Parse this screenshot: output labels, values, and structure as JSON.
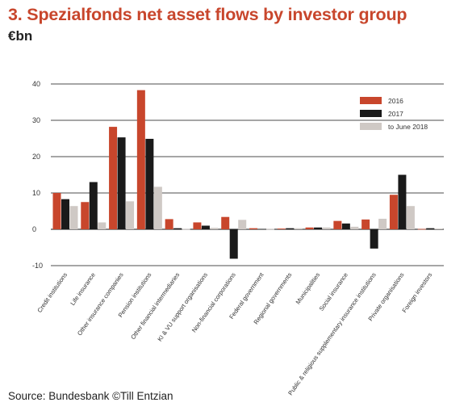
{
  "title": "3. Spezialfonds net asset flows by investor group",
  "unit": "€bn",
  "source": "Source: Bundesbank ©Till Entzian",
  "colors": {
    "s2016": "#c8462c",
    "s2017": "#1a1a1a",
    "s2018": "#cfc9c5",
    "grid": "#111111",
    "title": "#c8462c"
  },
  "chart_data": {
    "type": "bar",
    "title": "3. Spezialfonds net asset flows by investor group",
    "ylabel": "€bn",
    "xlabel": "",
    "ylim": [
      -10,
      40
    ],
    "yticks": [
      -10,
      0,
      10,
      20,
      30,
      40
    ],
    "grid": true,
    "legend_position": "top-right",
    "categories": [
      "Credit institutions",
      "Life insurance",
      "Other insurance companies",
      "Pension institutions",
      "Other financial intermediaries",
      "KI & VU support organisations",
      "Non-financial corporations",
      "Federal government",
      "Regional governments",
      "Municipalities",
      "Social insurance",
      "Public & religious supplementary insurance institutions",
      "Private organisations",
      "Foreign investors"
    ],
    "series": [
      {
        "name": "2016",
        "values": [
          10.0,
          7.5,
          28.2,
          38.3,
          2.8,
          1.9,
          3.4,
          0.3,
          0.2,
          0.5,
          2.3,
          2.7,
          9.5,
          0.1
        ]
      },
      {
        "name": "2017",
        "values": [
          8.3,
          13.0,
          25.3,
          24.9,
          0.3,
          1.0,
          -8.1,
          0.1,
          0.3,
          0.5,
          1.6,
          -5.3,
          15.0,
          0.3
        ]
      },
      {
        "name": "to June 2018",
        "values": [
          6.4,
          1.9,
          7.7,
          11.7,
          0.1,
          0.4,
          2.6,
          0.1,
          0.3,
          0.5,
          0.7,
          2.9,
          6.4,
          0.2
        ]
      }
    ]
  }
}
